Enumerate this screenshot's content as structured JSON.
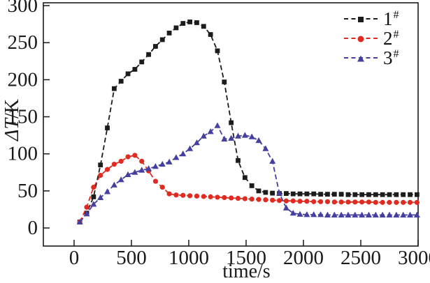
{
  "labels": {
    "xlabel": "time/s",
    "ylabel_main": "ΔT",
    "ylabel_unit": "/K"
  },
  "legend": {
    "position": "top-right",
    "items": [
      {
        "label": "1",
        "sup": "#",
        "color": "#1c1c1c",
        "marker": "square"
      },
      {
        "label": "2",
        "sup": "#",
        "color": "#e02b20",
        "marker": "circle"
      },
      {
        "label": "3",
        "sup": "#",
        "color": "#4540a0",
        "marker": "triangle"
      }
    ]
  },
  "chart_data": {
    "type": "line",
    "title": "",
    "xlabel": "time/s",
    "ylabel": "ΔT/K",
    "grid": false,
    "line_style": "dashed",
    "legend_position": "top-right",
    "xticks": [
      0,
      500,
      1000,
      1500,
      2000,
      2500,
      3000
    ],
    "yticks": [
      0,
      50,
      100,
      150,
      200,
      250,
      300
    ],
    "xlim": [
      -268,
      3000
    ],
    "ylim": [
      -24.4,
      303.8
    ],
    "x": [
      50,
      110,
      170,
      230,
      290,
      350,
      410,
      470,
      530,
      590,
      650,
      710,
      770,
      830,
      890,
      950,
      1010,
      1070,
      1130,
      1190,
      1250,
      1310,
      1370,
      1430,
      1490,
      1550,
      1610,
      1670,
      1730,
      1790,
      1850,
      1910,
      1970,
      2030,
      2090,
      2150,
      2210,
      2270,
      2330,
      2390,
      2450,
      2510,
      2570,
      2630,
      2690,
      2750,
      2810,
      2870,
      2930,
      2990
    ],
    "series": [
      {
        "name": "1#",
        "color": "#1c1c1c",
        "marker": "square",
        "values": [
          8,
          20,
          42,
          85,
          135,
          188,
          198,
          208,
          214,
          224,
          234,
          245,
          254,
          263,
          270,
          276,
          278,
          277,
          272,
          261,
          239,
          197,
          142,
          91,
          68,
          57,
          50,
          48,
          47,
          46.5,
          46.5,
          46,
          46,
          46,
          46,
          45.5,
          45.5,
          45.5,
          45.5,
          45,
          45,
          45,
          45,
          45,
          45,
          45,
          45,
          45,
          45,
          45
        ]
      },
      {
        "name": "2#",
        "color": "#e02b20",
        "marker": "circle",
        "values": [
          8,
          28,
          55,
          71,
          79,
          86,
          90,
          96,
          98,
          90,
          77,
          63,
          55,
          46,
          44.5,
          44,
          43.5,
          43,
          42.5,
          42,
          41.5,
          41,
          40.5,
          40,
          39.5,
          39,
          38.5,
          38,
          37.5,
          37,
          36.5,
          36.5,
          36,
          36,
          35.5,
          35.5,
          35.5,
          35,
          35,
          35,
          35,
          35,
          35,
          34.5,
          34.5,
          34.5,
          34.5,
          34.5,
          34.5,
          34.5
        ]
      },
      {
        "name": "3#",
        "color": "#4540a0",
        "marker": "triangle",
        "values": [
          8,
          19,
          32,
          41,
          49,
          58,
          65,
          72,
          75,
          78,
          80,
          83,
          86,
          89,
          95,
          100,
          107,
          115,
          124,
          130,
          138,
          120,
          121,
          124,
          125,
          123,
          118,
          107,
          90,
          47,
          27,
          20,
          18.5,
          18,
          18,
          18,
          17.5,
          17.5,
          17.5,
          17.5,
          17.5,
          17.5,
          17.5,
          17.5,
          17.5,
          17.5,
          17.5,
          17.5,
          17.5,
          17.5
        ]
      }
    ]
  }
}
